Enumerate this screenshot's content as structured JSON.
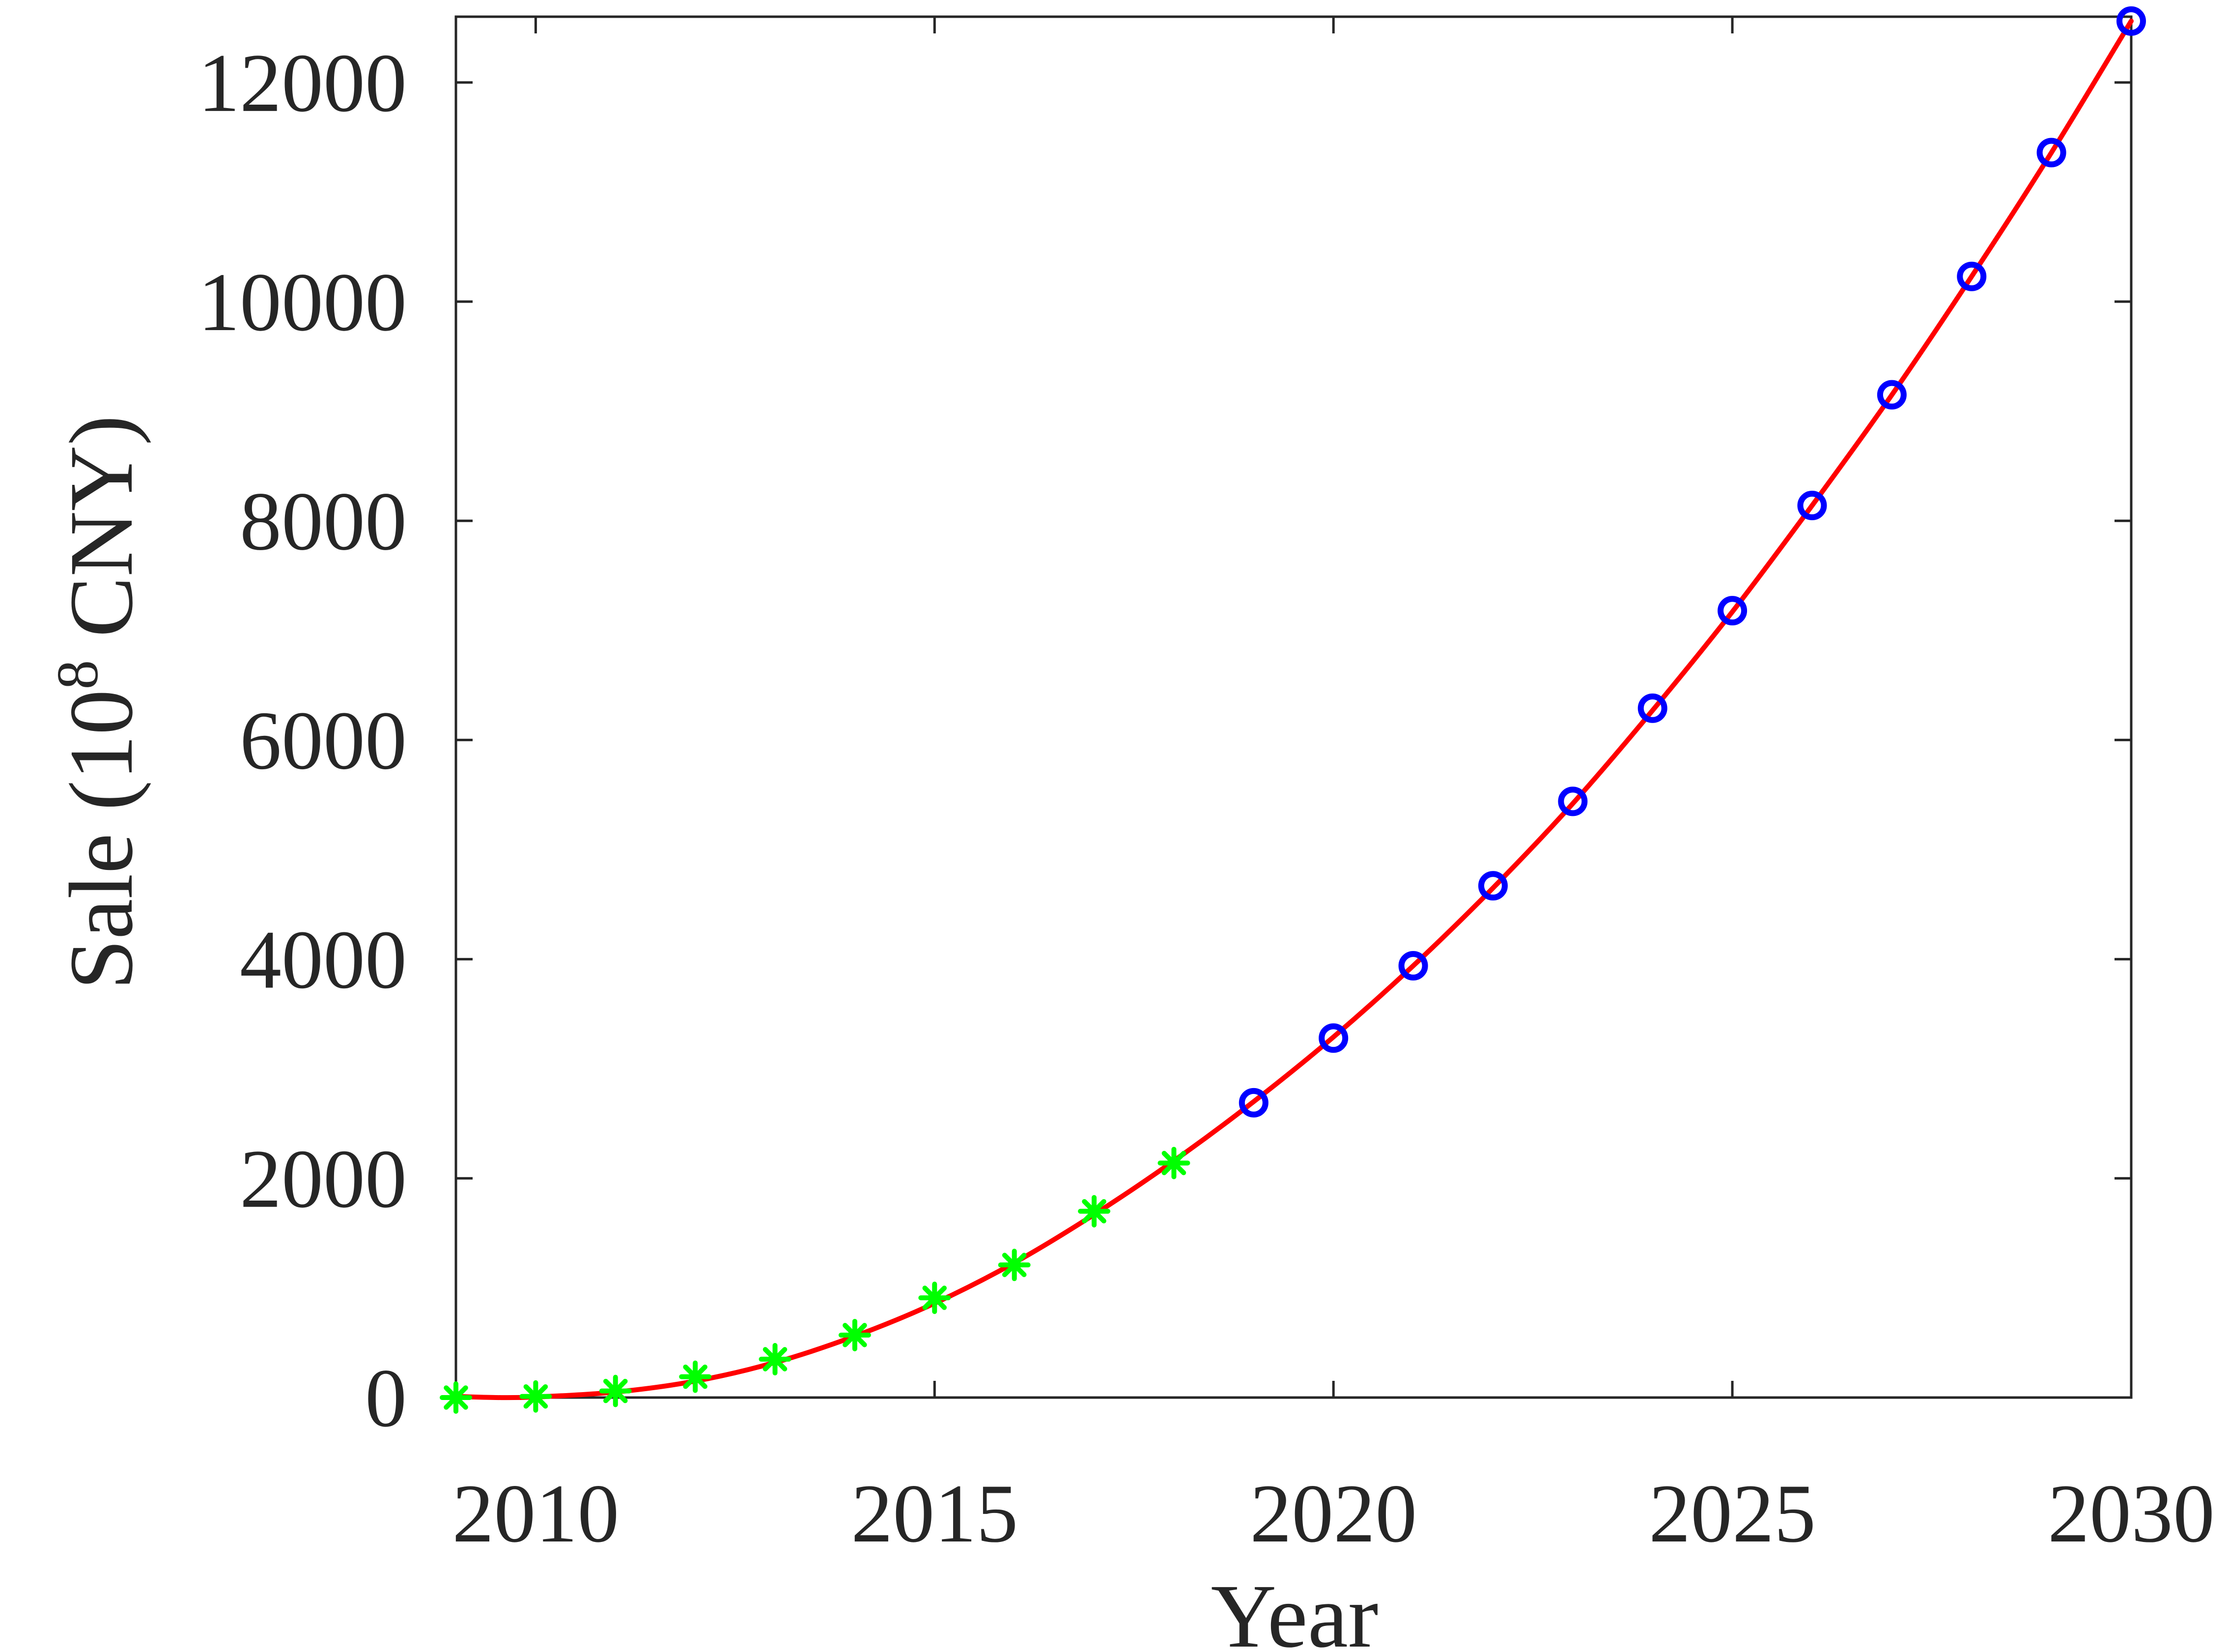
{
  "chart_data": {
    "type": "line",
    "title": "",
    "xlabel": "Year",
    "ylabel_text": "Sale (10",
    "ylabel_superscript": "8",
    "ylabel_suffix": " CNY)",
    "xlim": [
      2009,
      2030
    ],
    "ylim": [
      0,
      12600
    ],
    "xticks": [
      2010,
      2015,
      2020,
      2025,
      2030
    ],
    "yticks": [
      0,
      2000,
      4000,
      6000,
      8000,
      10000,
      12000
    ],
    "grid": false,
    "legend": "none",
    "series": [
      {
        "marker": "asterisk",
        "color": "#00ff00",
        "x": [
          2009,
          2010,
          2011,
          2012,
          2013,
          2014,
          2015,
          2016,
          2017,
          2018
        ],
        "y": [
          0,
          10,
          60,
          190,
          350,
          570,
          910,
          1210,
          1700,
          2140
        ]
      },
      {
        "marker": "circle",
        "color": "#0000ff",
        "x": [
          2019,
          2020,
          2021,
          2022,
          2023,
          2024,
          2025,
          2026,
          2027,
          2028,
          2029,
          2030
        ],
        "y": [
          2690,
          3280,
          3940,
          4670,
          5440,
          6290,
          7180,
          8140,
          9150,
          10230,
          11360,
          12560
        ]
      },
      {
        "marker": "none",
        "color": "#ff0000",
        "style": "fitted-curve",
        "x": [
          2009,
          2009.5,
          2010,
          2011,
          2012,
          2013,
          2014,
          2015,
          2016,
          2017,
          2018,
          2019,
          2020,
          2021,
          2022,
          2023,
          2024,
          2025,
          2026,
          2027,
          2028,
          2029,
          2030
        ],
        "y": [
          10,
          0,
          5,
          50,
          150,
          320,
          560,
          860,
          1230,
          1670,
          2160,
          2700,
          3290,
          3940,
          4650,
          5420,
          6270,
          7170,
          8140,
          9150,
          10230,
          11360,
          12560
        ]
      }
    ]
  }
}
